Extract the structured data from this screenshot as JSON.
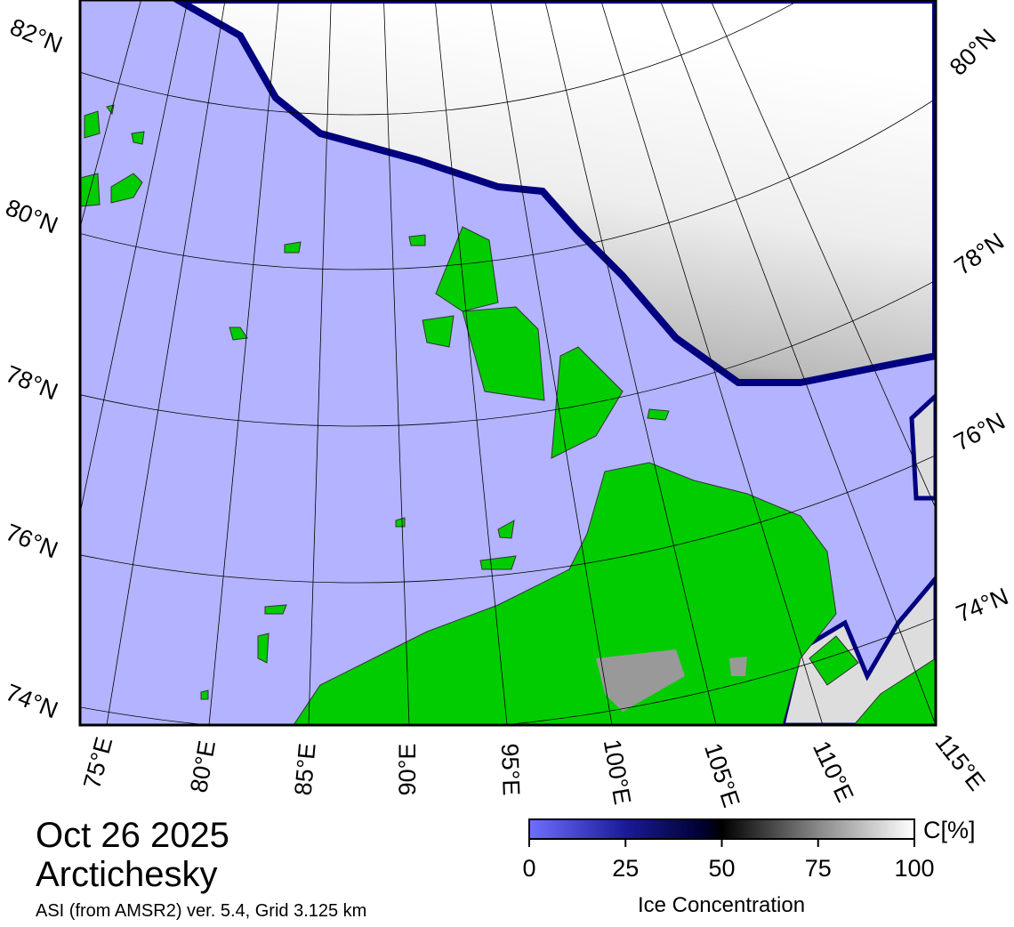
{
  "map": {
    "title": "Oct 26 2025",
    "location": "Arctichesky",
    "subtitle": "ASI (from AMSR2) ver. 5.4,  Grid 3.125 km",
    "lat_labels_left": [
      "82°N",
      "80°N",
      "78°N",
      "76°N",
      "74°N"
    ],
    "lat_labels_right": [
      "80°N",
      "78°N",
      "76°N",
      "74°N"
    ],
    "lon_labels": [
      "75°E",
      "80°E",
      "85°E",
      "90°E",
      "95°E",
      "100°E",
      "105°E",
      "110°E",
      "115°E"
    ]
  },
  "colorbar": {
    "label": "Ice Concentration",
    "unit": "C[%]",
    "range": [
      0,
      100
    ],
    "ticks": [
      0,
      25,
      50,
      75,
      100
    ]
  }
}
